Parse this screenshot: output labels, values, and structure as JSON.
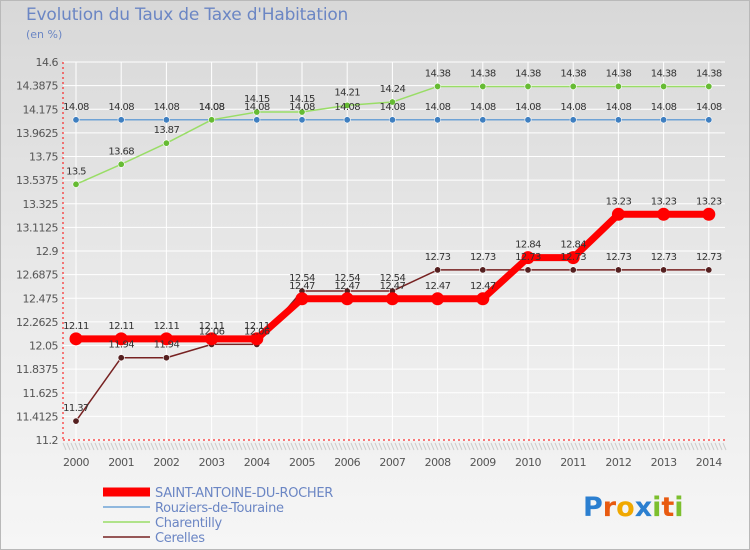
{
  "chart_data": {
    "type": "line",
    "title": "Evolution du Taux de Taxe d'Habitation",
    "ylabel": "(en %)",
    "xlabel": "",
    "categories": [
      "2000",
      "2001",
      "2002",
      "2003",
      "2004",
      "2005",
      "2006",
      "2007",
      "2008",
      "2009",
      "2010",
      "2011",
      "2012",
      "2013",
      "2014"
    ],
    "yticks": [
      "11.2",
      "11.4125",
      "11.625",
      "11.8375",
      "12.05",
      "12.2625",
      "12.475",
      "12.6875",
      "12.9",
      "13.1125",
      "13.325",
      "13.5375",
      "13.75",
      "13.9625",
      "14.175",
      "14.3875",
      "14.6"
    ],
    "ylim": [
      11.2,
      14.6
    ],
    "series": [
      {
        "name": "SAINT-ANTOINE-DU-ROCHER",
        "color": "#ff0000",
        "marker": "#ff0000",
        "values": [
          12.11,
          12.11,
          12.11,
          12.11,
          12.11,
          12.47,
          12.47,
          12.47,
          12.47,
          12.47,
          12.84,
          12.84,
          13.23,
          13.23,
          13.23
        ],
        "labels": [
          "12.11",
          "12.11",
          "12.11",
          "12.11",
          "12.11",
          "12.47",
          "12.47",
          "12.47",
          "12.47",
          "12.47",
          "12.84",
          "12.84",
          "13.23",
          "13.23",
          "13.23"
        ]
      },
      {
        "name": "Rouziers-de-Touraine",
        "color": "#6fa3d6",
        "marker": "#3f7fc0",
        "values": [
          14.08,
          14.08,
          14.08,
          14.08,
          14.08,
          14.08,
          14.08,
          14.08,
          14.08,
          14.08,
          14.08,
          14.08,
          14.08,
          14.08,
          14.08
        ],
        "labels": [
          "14.08",
          "14.08",
          "14.08",
          "14.08",
          "14.08",
          "14.08",
          "14.08",
          "14.08",
          "14.08",
          "14.08",
          "14.08",
          "14.08",
          "14.08",
          "14.08",
          "14.08"
        ]
      },
      {
        "name": "Charentilly",
        "color": "#99dd66",
        "marker": "#66bb33",
        "values": [
          13.5,
          13.68,
          13.87,
          14.08,
          14.15,
          14.15,
          14.21,
          14.24,
          14.38,
          14.38,
          14.38,
          14.38,
          14.38,
          14.38,
          14.38
        ],
        "labels": [
          "13.5",
          "13.68",
          "13.87",
          "14.08",
          "14.15",
          "14.15",
          "14.21",
          "14.24",
          "14.38",
          "14.38",
          "14.38",
          "14.38",
          "14.38",
          "14.38",
          "14.38"
        ]
      },
      {
        "name": "Cerelles",
        "color": "#772222",
        "marker": "#552020",
        "values": [
          11.37,
          11.94,
          11.94,
          12.06,
          12.06,
          12.54,
          12.54,
          12.54,
          12.73,
          12.73,
          12.73,
          12.73,
          12.73,
          12.73,
          12.73
        ],
        "labels": [
          "11.37",
          "11.94",
          "11.94",
          "12.06",
          "12.06",
          "12.54",
          "12.54",
          "12.54",
          "12.73",
          "12.73",
          "12.73",
          "12.73",
          "12.73",
          "12.73",
          "12.73"
        ]
      }
    ],
    "legend_position": "bottom-left"
  },
  "logo": {
    "letters": [
      "P",
      "r",
      "o",
      "x",
      "i",
      "t",
      "i"
    ],
    "colors": [
      "#2b7fd0",
      "#e85a10",
      "#f0a800",
      "#2b7fd0",
      "#7cbf2e",
      "#e85a10",
      "#7cbf2e"
    ]
  }
}
